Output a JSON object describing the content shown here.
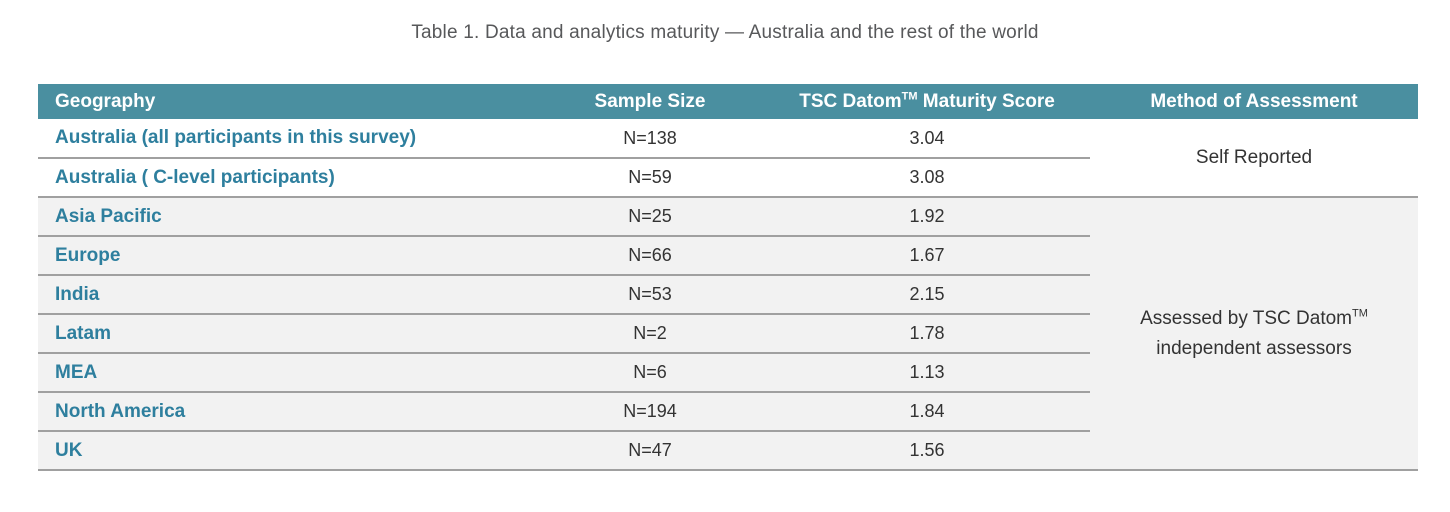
{
  "title": "Table 1. Data and analytics maturity — Australia and the rest of the world",
  "colors": {
    "header_bg": "#4a8fa0",
    "geo_text": "#2e7f9e",
    "row_alt_bg": "#f2f2f2",
    "line": "#a0a0a0",
    "title_text": "#57585a",
    "body_text": "#333333"
  },
  "chart_data": {
    "type": "table",
    "columns": [
      {
        "label": "Geography"
      },
      {
        "label": "Sample Size"
      },
      {
        "label": "TSC Datom™ Maturity Score",
        "pre": "TSC Datom",
        "sup": "TM",
        "post": " Maturity Score"
      },
      {
        "label": "Method of Assessment"
      }
    ],
    "sections": [
      {
        "method": {
          "line1_pre": "Self Reported",
          "sup": "",
          "line2": ""
        },
        "rows": [
          {
            "geography": "Australia (all participants in this survey)",
            "sample_size": "N=138",
            "maturity_score": "3.04"
          },
          {
            "geography": "Australia ( C-level participants)",
            "sample_size": "N=59",
            "maturity_score": "3.08"
          }
        ]
      },
      {
        "method": {
          "line1_pre": "Assessed by TSC Datom",
          "sup": "TM",
          "line2": "independent assessors"
        },
        "rows": [
          {
            "geography": "Asia Pacific",
            "sample_size": "N=25",
            "maturity_score": "1.92"
          },
          {
            "geography": "Europe",
            "sample_size": "N=66",
            "maturity_score": "1.67"
          },
          {
            "geography": "India",
            "sample_size": "N=53",
            "maturity_score": "2.15"
          },
          {
            "geography": "Latam",
            "sample_size": "N=2",
            "maturity_score": "1.78"
          },
          {
            "geography": "MEA",
            "sample_size": "N=6",
            "maturity_score": "1.13"
          },
          {
            "geography": "North America",
            "sample_size": "N=194",
            "maturity_score": "1.84"
          },
          {
            "geography": "UK",
            "sample_size": "N=47",
            "maturity_score": "1.56"
          }
        ]
      }
    ]
  }
}
